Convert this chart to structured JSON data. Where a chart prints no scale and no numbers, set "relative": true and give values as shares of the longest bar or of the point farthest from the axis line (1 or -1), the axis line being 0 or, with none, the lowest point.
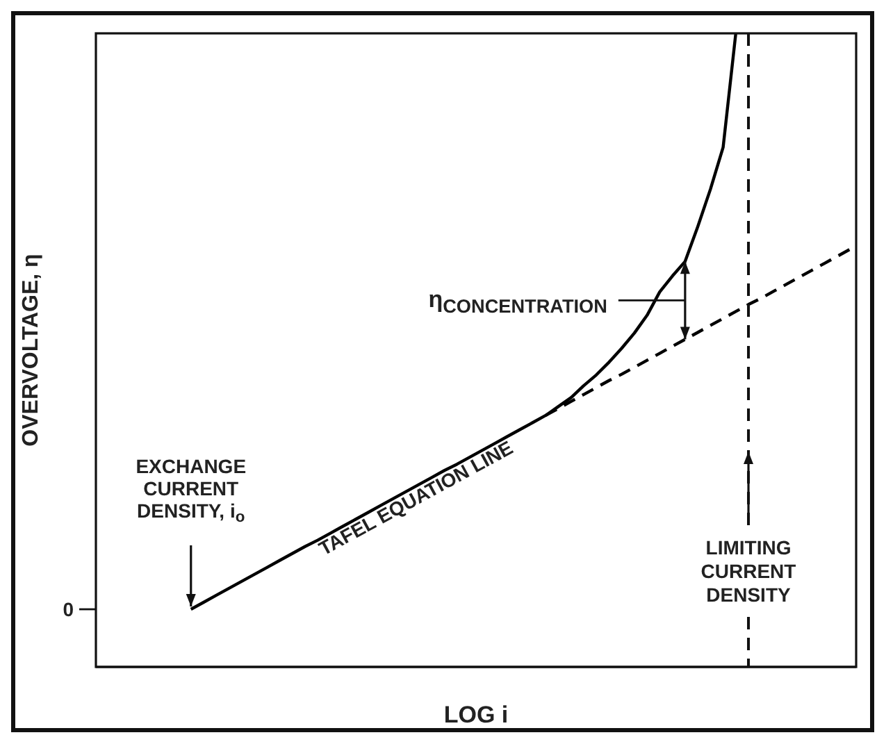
{
  "chart_data": {
    "type": "line",
    "relative": true,
    "xlabel": "LOG i",
    "ylabel": "OVERVOLTAGE, η",
    "categories": [
      null,
      null,
      null,
      null,
      null,
      null,
      null,
      null,
      null,
      null,
      null,
      null,
      null,
      null,
      null,
      null,
      null,
      null,
      null,
      null,
      null,
      null,
      null,
      null,
      null,
      null,
      null,
      null,
      null,
      null,
      null,
      null,
      null,
      null,
      null,
      null,
      null,
      null,
      null,
      null,
      null,
      null,
      null,
      null,
      null,
      null,
      null,
      null,
      null,
      null,
      null,
      null,
      null,
      null,
      null,
      null,
      null,
      null,
      null,
      null
    ],
    "series": [
      {
        "color": "#000000",
        "line_style": "solid",
        "values": [
          null,
          null,
          null,
          null,
          null,
          null,
          null,
          0.091,
          0.102,
          0.113,
          0.124,
          0.135,
          0.146,
          0.157,
          0.168,
          0.179,
          0.19,
          0.2,
          0.211,
          0.222,
          0.233,
          0.244,
          0.255,
          0.266,
          0.277,
          0.288,
          0.299,
          0.31,
          0.32,
          0.331,
          0.342,
          0.353,
          0.364,
          0.375,
          0.386,
          0.397,
          0.411,
          0.425,
          0.444,
          0.461,
          0.481,
          0.503,
          0.527,
          0.555,
          0.592,
          0.617,
          0.64,
          0.695,
          0.754,
          0.82,
          1,
          null,
          null,
          null,
          null,
          null,
          null,
          null,
          null,
          null
        ]
      },
      {
        "color": "#000000",
        "line_style": "dashed",
        "values": [
          null,
          null,
          null,
          null,
          null,
          null,
          null,
          null,
          null,
          null,
          null,
          null,
          null,
          null,
          null,
          null,
          null,
          null,
          null,
          null,
          null,
          null,
          null,
          null,
          null,
          null,
          null,
          null,
          null,
          null,
          null,
          null,
          null,
          null,
          null,
          0.397,
          0.408,
          0.419,
          0.43,
          0.441,
          0.452,
          0.462,
          0.473,
          0.484,
          0.495,
          0.506,
          0.517,
          0.528,
          0.539,
          0.55,
          0.561,
          0.572,
          0.582,
          0.593,
          0.604,
          0.615,
          0.626,
          0.637,
          0.648,
          0.659
        ]
      }
    ],
    "annotations": [
      "EXCHANGE CURRENT DENSITY, i$_{o}$",
      "TAFEL EQUATION LINE",
      "η$_{CONCENTRATION}$",
      "0",
      "LIMITING CURRENT DENSITY"
    ]
  }
}
